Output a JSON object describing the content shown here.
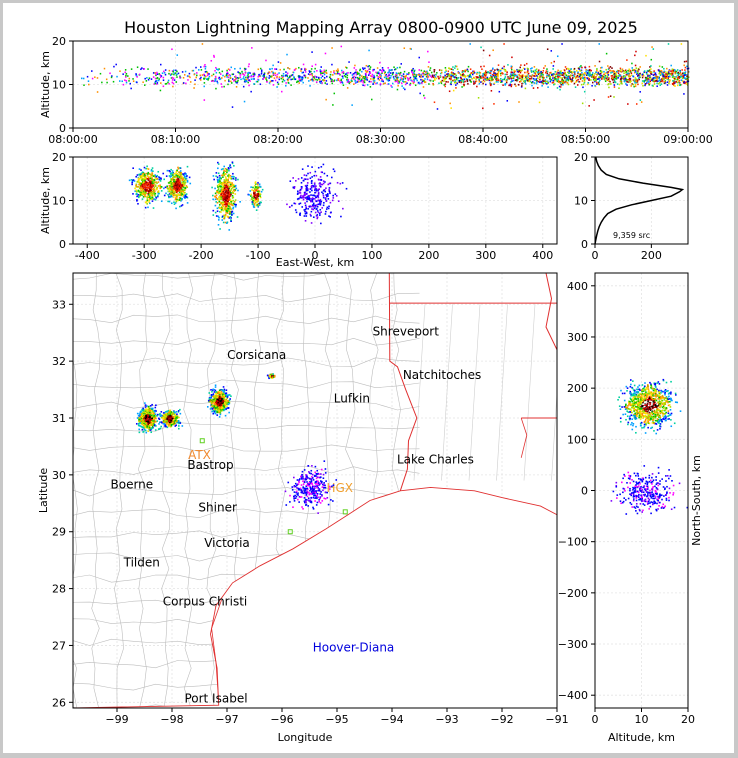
{
  "title": "Houston Lightning Mapping Array 0800-0900 UTC June 09, 2025",
  "chart_data": [
    {
      "panel": "time-altitude",
      "type": "scatter",
      "xlabel": "",
      "ylabel": "Altitude, km",
      "ylim": [
        0,
        20
      ],
      "yticks": [
        0,
        10,
        20
      ],
      "xticks": [
        "08:00:00",
        "08:10:00",
        "08:20:00",
        "08:30:00",
        "08:40:00",
        "08:50:00",
        "09:00:00"
      ],
      "xlim_minutes": [
        0,
        60
      ],
      "clusters": [
        {
          "x_min": [
            0,
            60
          ],
          "alt_km": [
            8,
            17
          ],
          "n": 2600
        }
      ]
    },
    {
      "panel": "east-west-altitude",
      "type": "scatter",
      "xlabel": "East-West, km",
      "ylabel": "Altitude, km",
      "xlim": [
        -425,
        425
      ],
      "ylim": [
        0,
        20
      ],
      "xticks": [
        -400,
        -300,
        -200,
        -100,
        0,
        100,
        200,
        300,
        400
      ],
      "yticks": [
        0,
        10,
        20
      ],
      "clusters": [
        {
          "x_km": [
            -330,
            -260
          ],
          "alt_km": [
            8,
            19
          ],
          "n": 450
        },
        {
          "x_km": [
            -270,
            -215
          ],
          "alt_km": [
            8,
            19
          ],
          "n": 400
        },
        {
          "x_km": [
            -185,
            -130
          ],
          "alt_km": [
            3,
            20
          ],
          "n": 500
        },
        {
          "x_km": [
            -120,
            -90
          ],
          "alt_km": [
            7,
            16
          ],
          "n": 120
        },
        {
          "x_km": [
            -60,
            60
          ],
          "alt_km": [
            3,
            20
          ],
          "n": 300
        }
      ]
    },
    {
      "panel": "altitude-histogram",
      "type": "line",
      "annotation": "9,359 src",
      "xlim": [
        0,
        330
      ],
      "ylim": [
        0,
        20
      ],
      "xticks": [
        0,
        200
      ],
      "yticks": [
        0,
        10,
        20
      ],
      "profile": [
        [
          0,
          0
        ],
        [
          1,
          3
        ],
        [
          2,
          6
        ],
        [
          3,
          10
        ],
        [
          4,
          15
        ],
        [
          5,
          22
        ],
        [
          6,
          32
        ],
        [
          7,
          45
        ],
        [
          8,
          75
        ],
        [
          9,
          130
        ],
        [
          10,
          200
        ],
        [
          11,
          270
        ],
        [
          12,
          300
        ],
        [
          12.5,
          310
        ],
        [
          13,
          270
        ],
        [
          14,
          170
        ],
        [
          15,
          85
        ],
        [
          16,
          40
        ],
        [
          17,
          22
        ],
        [
          18,
          12
        ],
        [
          19,
          6
        ],
        [
          20,
          3
        ]
      ]
    },
    {
      "panel": "plan-view-map",
      "type": "scatter",
      "xlabel": "Longitude",
      "ylabel": "Latitude",
      "xlim": [
        -99.8,
        -91
      ],
      "ylim": [
        25.9,
        33.55
      ],
      "xticks": [
        -99,
        -98,
        -97,
        -96,
        -95,
        -94,
        -93,
        -92,
        -91
      ],
      "yticks": [
        26,
        27,
        28,
        29,
        30,
        31,
        32,
        33
      ],
      "cities": [
        {
          "name": "Shreveport",
          "lon": -93.75,
          "lat": 32.52,
          "color": "#000000"
        },
        {
          "name": "Corsicana",
          "lon": -96.46,
          "lat": 32.11,
          "color": "#000000"
        },
        {
          "name": "Natchitoches",
          "lon": -93.09,
          "lat": 31.76,
          "color": "#000000"
        },
        {
          "name": "Lufkin",
          "lon": -94.73,
          "lat": 31.34,
          "color": "#000000"
        },
        {
          "name": "Lake Charles",
          "lon": -93.21,
          "lat": 30.27,
          "color": "#000000"
        },
        {
          "name": "Bastrop",
          "lon": -97.3,
          "lat": 30.17,
          "color": "#000000"
        },
        {
          "name": "Boerne",
          "lon": -98.73,
          "lat": 29.83,
          "color": "#000000"
        },
        {
          "name": "Shiner",
          "lon": -97.17,
          "lat": 29.43,
          "color": "#000000"
        },
        {
          "name": "Victoria",
          "lon": -97.0,
          "lat": 28.8,
          "color": "#000000"
        },
        {
          "name": "Tilden",
          "lon": -98.55,
          "lat": 28.46,
          "color": "#000000"
        },
        {
          "name": "Corpus Christi",
          "lon": -97.4,
          "lat": 27.77,
          "color": "#000000"
        },
        {
          "name": "Hoover-Diana",
          "lon": -94.7,
          "lat": 26.96,
          "color": "#0000dd"
        },
        {
          "name": "Port Isabel",
          "lon": -97.2,
          "lat": 26.07,
          "color": "#000000"
        },
        {
          "name": "ATX",
          "lon": -97.5,
          "lat": 30.35,
          "color": "#f08a30"
        },
        {
          "name": "HGX",
          "lon": -94.95,
          "lat": 29.77,
          "color": "#f0a030"
        }
      ],
      "clusters": [
        {
          "lon": [
            -98.7,
            -98.2
          ],
          "lat": [
            30.7,
            31.3
          ],
          "n": 450
        },
        {
          "lon": [
            -98.3,
            -97.8
          ],
          "lat": [
            30.8,
            31.2
          ],
          "n": 300
        },
        {
          "lon": [
            -97.4,
            -96.9
          ],
          "lat": [
            31.0,
            31.6
          ],
          "n": 450
        },
        {
          "lon": [
            -96.3,
            -96.1
          ],
          "lat": [
            31.7,
            31.8
          ],
          "n": 40
        },
        {
          "lon": [
            -96.0,
            -95.0
          ],
          "lat": [
            29.3,
            30.3
          ],
          "n": 300
        }
      ]
    },
    {
      "panel": "altitude-north-south",
      "type": "scatter",
      "xlabel": "Altitude, km",
      "ylabel": "North-South, km",
      "xlim": [
        0,
        20
      ],
      "ylim": [
        -425,
        425
      ],
      "xticks": [
        0,
        10,
        20
      ],
      "yticks": [
        -400,
        -300,
        -200,
        -100,
        0,
        100,
        200,
        300,
        400
      ],
      "clusters": [
        {
          "alt_km": [
            4,
            19
          ],
          "y_km": [
            110,
            225
          ],
          "n": 900
        },
        {
          "alt_km": [
            2,
            20
          ],
          "y_km": [
            -60,
            60
          ],
          "n": 300
        }
      ]
    }
  ]
}
